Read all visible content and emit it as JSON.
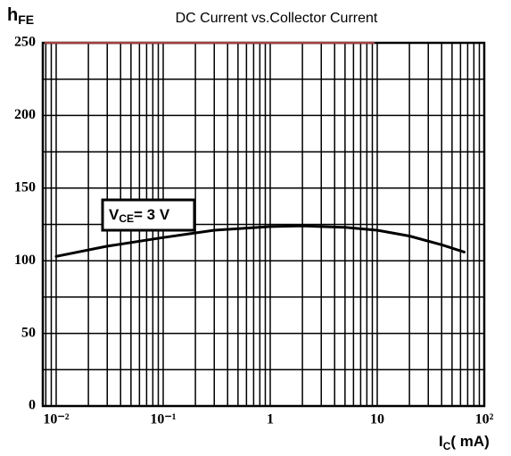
{
  "chart_data": {
    "type": "line",
    "title": "DC Current vs.Collector Current",
    "ylabel": {
      "main": "h",
      "sub": "FE"
    },
    "xlabel": {
      "main": "I",
      "sub": "C",
      "rest": "( mA)"
    },
    "annotation": {
      "main": "V",
      "sub": "CE",
      "rest": "= 3 V"
    },
    "x": [
      0.01,
      0.03,
      0.1,
      0.3,
      1,
      2,
      5,
      10,
      20,
      40,
      65
    ],
    "values": [
      103,
      110,
      116,
      121,
      123.5,
      124,
      123,
      121,
      117,
      111,
      106
    ],
    "color": "#000000",
    "xscale": "log",
    "xlim": [
      0.0075,
      100
    ],
    "xticks": [
      {
        "value": 0.01,
        "label": "10⁻²"
      },
      {
        "value": 0.1,
        "label": "10⁻¹"
      },
      1,
      10,
      {
        "value": 100,
        "label": "10²"
      }
    ],
    "ylim": [
      0,
      250
    ],
    "yticks": [
      0,
      50,
      100,
      150,
      200,
      250
    ],
    "grid": true
  }
}
